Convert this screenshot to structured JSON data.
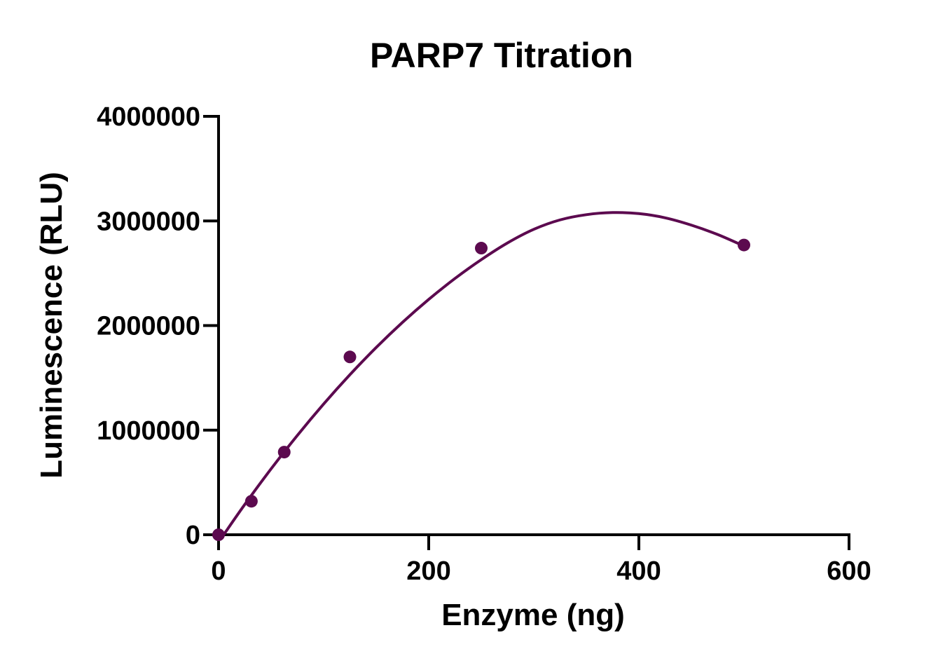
{
  "chart_data": {
    "type": "scatter",
    "title": "PARP7 Titration",
    "xlabel": "Enzyme (ng)",
    "ylabel": "Luminescence (RLU)",
    "xlim": [
      0,
      600
    ],
    "ylim": [
      0,
      4000000
    ],
    "xticks": [
      0,
      200,
      400,
      600
    ],
    "yticks": [
      0,
      1000000,
      2000000,
      3000000,
      4000000
    ],
    "xtick_labels": [
      "0",
      "200",
      "400",
      "600"
    ],
    "ytick_labels": [
      "0",
      "1000000",
      "2000000",
      "3000000",
      "4000000"
    ],
    "grid": false,
    "color": "#5c0a4f",
    "series": [
      {
        "x": [
          0,
          31.25,
          62.5,
          125,
          250,
          500
        ],
        "y": [
          0,
          320000,
          790000,
          1700000,
          2740000,
          2770000
        ]
      }
    ],
    "fit_curve": {
      "type": "quadratic",
      "x": [
        0,
        25,
        50,
        75,
        100,
        125,
        150,
        175,
        200,
        225,
        250,
        275,
        300,
        325,
        350,
        375,
        400,
        425,
        450,
        475,
        500
      ],
      "y": [
        -70000,
        290000,
        630000,
        950000,
        1250000,
        1530000,
        1790000,
        2030000,
        2250000,
        2450000,
        2630000,
        2790000,
        2920000,
        3010000,
        3060000,
        3080000,
        3070000,
        3030000,
        2960000,
        2870000,
        2760000
      ]
    }
  }
}
